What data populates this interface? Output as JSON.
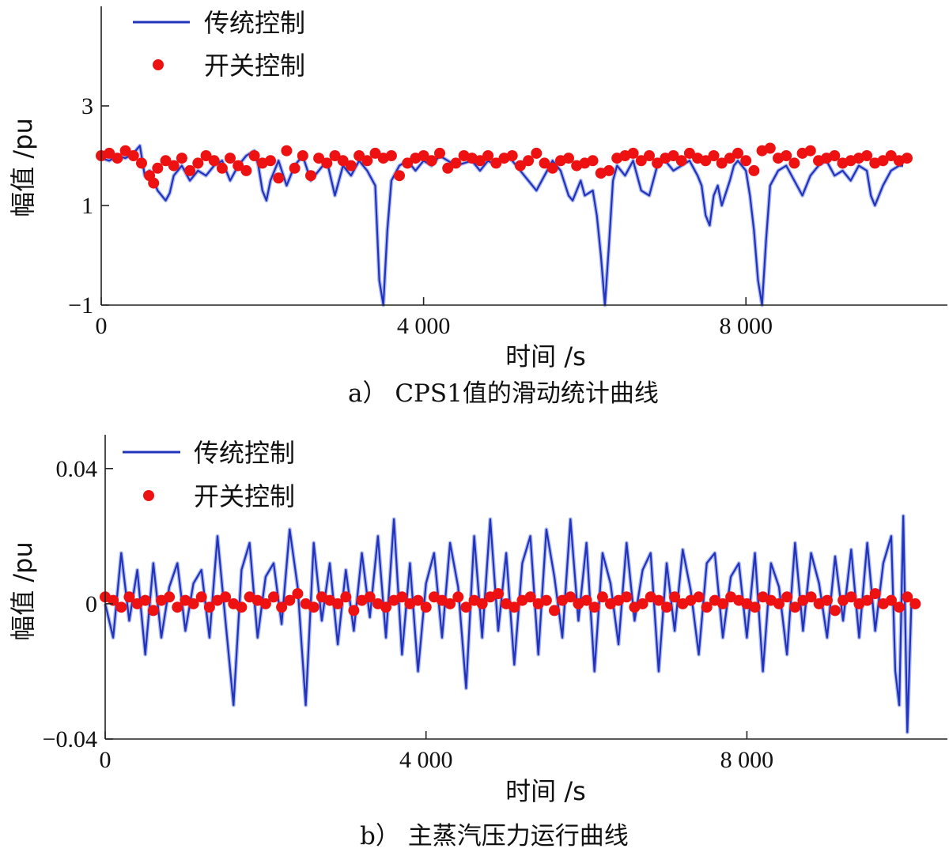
{
  "chart_data": [
    {
      "id": "a",
      "type": "scatter",
      "caption": "a）  CPS1值的滑动统计曲线",
      "xlabel": "时间 /s",
      "ylabel": "幅值 /pu",
      "xlim": [
        0,
        10500
      ],
      "ylim": [
        -1,
        5
      ],
      "x_ticks": [
        0,
        4000,
        8000
      ],
      "x_tick_labels": [
        "0",
        "4 000",
        "8 000"
      ],
      "y_ticks": [
        -1,
        1,
        3
      ],
      "y_tick_labels": [
        "−1",
        "1",
        "3"
      ],
      "grid": false,
      "legend": "top-left",
      "series": [
        {
          "name": "传统控制",
          "kind": "line",
          "color": "#2233bb",
          "x": [
            0,
            100,
            200,
            300,
            400,
            480,
            540,
            600,
            700,
            800,
            850,
            900,
            1000,
            1100,
            1200,
            1300,
            1400,
            1500,
            1600,
            1700,
            1800,
            1900,
            1950,
            2000,
            2050,
            2100,
            2200,
            2300,
            2400,
            2500,
            2600,
            2700,
            2800,
            2900,
            3000,
            3100,
            3200,
            3300,
            3400,
            3450,
            3500,
            3550,
            3600,
            3700,
            3800,
            3900,
            4000,
            4100,
            4200,
            4300,
            4400,
            4500,
            4600,
            4700,
            4800,
            4900,
            5000,
            5100,
            5200,
            5300,
            5400,
            5500,
            5600,
            5700,
            5800,
            5850,
            5950,
            6000,
            6100,
            6150,
            6200,
            6250,
            6300,
            6350,
            6400,
            6500,
            6600,
            6700,
            6800,
            6900,
            7000,
            7100,
            7200,
            7300,
            7400,
            7450,
            7500,
            7550,
            7600,
            7650,
            7700,
            7800,
            7850,
            7900,
            8000,
            8050,
            8100,
            8150,
            8200,
            8250,
            8300,
            8400,
            8500,
            8600,
            8700,
            8800,
            8900,
            9000,
            9100,
            9200,
            9300,
            9400,
            9500,
            9550,
            9600,
            9700,
            9800,
            9900,
            9950
          ],
          "y": [
            1.95,
            1.9,
            2.0,
            1.95,
            2.05,
            2.2,
            1.6,
            1.7,
            1.3,
            1.1,
            1.25,
            1.6,
            1.8,
            1.5,
            1.7,
            1.6,
            1.8,
            1.9,
            1.5,
            1.8,
            2.0,
            2.1,
            1.8,
            1.3,
            1.1,
            1.5,
            1.9,
            1.4,
            1.8,
            2.0,
            1.5,
            1.7,
            1.9,
            1.2,
            1.8,
            1.6,
            1.9,
            1.7,
            1.4,
            -0.5,
            -1.0,
            0.5,
            1.5,
            1.8,
            1.9,
            1.7,
            1.9,
            1.8,
            2.0,
            1.9,
            1.8,
            1.85,
            1.9,
            1.7,
            1.9,
            1.8,
            2.0,
            1.9,
            1.7,
            1.5,
            1.3,
            1.6,
            1.9,
            1.7,
            1.2,
            1.1,
            1.5,
            1.2,
            1.3,
            0.8,
            0.0,
            -1.0,
            0.2,
            1.5,
            1.8,
            1.6,
            1.9,
            1.3,
            1.2,
            1.8,
            1.9,
            1.7,
            1.8,
            1.9,
            1.6,
            1.4,
            0.8,
            0.6,
            1.2,
            1.4,
            1.0,
            1.5,
            1.8,
            1.9,
            1.7,
            1.2,
            0.5,
            -0.5,
            -1.0,
            0.3,
            1.4,
            1.7,
            1.8,
            1.5,
            1.2,
            1.6,
            1.8,
            1.9,
            1.6,
            1.7,
            1.5,
            1.8,
            1.7,
            1.2,
            1.0,
            1.4,
            1.7,
            1.8,
            1.8
          ]
        },
        {
          "name": "开关控制",
          "kind": "markers",
          "color": "#ee1111",
          "x": [
            0,
            100,
            200,
            300,
            400,
            500,
            600,
            650,
            700,
            800,
            900,
            1000,
            1100,
            1200,
            1300,
            1400,
            1500,
            1600,
            1700,
            1800,
            1900,
            2000,
            2100,
            2200,
            2300,
            2400,
            2500,
            2600,
            2700,
            2800,
            2900,
            3000,
            3100,
            3200,
            3300,
            3400,
            3500,
            3600,
            3700,
            3800,
            3900,
            4000,
            4100,
            4200,
            4300,
            4400,
            4500,
            4600,
            4700,
            4800,
            4900,
            5000,
            5100,
            5200,
            5300,
            5400,
            5500,
            5600,
            5700,
            5800,
            5900,
            6000,
            6100,
            6200,
            6300,
            6400,
            6500,
            6600,
            6700,
            6800,
            6900,
            7000,
            7100,
            7200,
            7300,
            7400,
            7500,
            7600,
            7700,
            7800,
            7900,
            8000,
            8100,
            8200,
            8300,
            8400,
            8500,
            8600,
            8700,
            8800,
            8900,
            9000,
            9100,
            9200,
            9300,
            9400,
            9500,
            9600,
            9700,
            9800,
            9900,
            10000
          ],
          "y": [
            2.0,
            2.05,
            1.95,
            2.1,
            2.0,
            1.85,
            1.6,
            1.45,
            1.75,
            1.9,
            1.8,
            1.95,
            1.7,
            1.85,
            2.0,
            1.9,
            1.75,
            1.95,
            1.8,
            1.7,
            2.0,
            1.85,
            1.9,
            1.55,
            2.1,
            1.75,
            2.0,
            1.6,
            1.95,
            1.85,
            2.0,
            1.9,
            1.8,
            2.0,
            1.9,
            2.05,
            1.95,
            2.0,
            1.6,
            1.85,
            1.95,
            2.0,
            1.9,
            2.05,
            1.75,
            1.85,
            2.0,
            1.95,
            1.9,
            2.0,
            1.85,
            1.95,
            2.0,
            1.8,
            1.9,
            2.05,
            1.85,
            1.75,
            1.9,
            1.95,
            1.8,
            1.85,
            1.9,
            1.65,
            1.7,
            1.95,
            2.0,
            2.05,
            1.9,
            2.0,
            1.85,
            1.95,
            2.0,
            1.9,
            2.05,
            1.95,
            1.9,
            2.0,
            1.85,
            1.95,
            2.05,
            1.9,
            1.7,
            2.1,
            2.15,
            1.95,
            2.0,
            1.85,
            2.05,
            2.1,
            1.9,
            1.95,
            2.0,
            1.85,
            1.9,
            1.95,
            2.0,
            1.85,
            1.9,
            2.0,
            1.9,
            1.95
          ]
        }
      ]
    },
    {
      "id": "b",
      "type": "scatter",
      "caption": "b）  主蒸汽压力运行曲线",
      "xlabel": "时间 /s",
      "ylabel": "幅值 /pu",
      "xlim": [
        0,
        10500
      ],
      "ylim": [
        -0.04,
        0.05
      ],
      "x_ticks": [
        0,
        4000,
        8000
      ],
      "x_tick_labels": [
        "0",
        "4 000",
        "8 000"
      ],
      "y_ticks": [
        -0.04,
        0,
        0.04
      ],
      "y_tick_labels": [
        "−0.04",
        "0",
        "0.04"
      ],
      "grid": false,
      "legend": "top-left",
      "series": [
        {
          "name": "传统控制",
          "kind": "line",
          "color": "#2233bb",
          "x": [
            0,
            100,
            200,
            300,
            400,
            500,
            600,
            700,
            800,
            900,
            1000,
            1100,
            1200,
            1300,
            1400,
            1500,
            1600,
            1700,
            1800,
            1900,
            2000,
            2100,
            2200,
            2300,
            2400,
            2500,
            2600,
            2700,
            2800,
            2900,
            3000,
            3100,
            3200,
            3300,
            3400,
            3500,
            3600,
            3700,
            3800,
            3900,
            4000,
            4100,
            4200,
            4300,
            4400,
            4500,
            4600,
            4700,
            4800,
            4900,
            5000,
            5100,
            5200,
            5300,
            5400,
            5500,
            5600,
            5700,
            5800,
            5900,
            6000,
            6100,
            6200,
            6300,
            6400,
            6500,
            6600,
            6700,
            6800,
            6900,
            7000,
            7100,
            7200,
            7300,
            7400,
            7500,
            7600,
            7700,
            7800,
            7900,
            8000,
            8100,
            8200,
            8300,
            8400,
            8500,
            8600,
            8700,
            8800,
            8900,
            9000,
            9100,
            9200,
            9300,
            9400,
            9500,
            9600,
            9700,
            9800,
            9850,
            9900,
            9950,
            10000,
            10050
          ],
          "y": [
            0.0,
            -0.01,
            0.015,
            -0.005,
            0.01,
            -0.015,
            0.012,
            -0.01,
            0.005,
            0.012,
            -0.008,
            0.006,
            0.01,
            -0.01,
            0.02,
            -0.005,
            -0.03,
            0.01,
            0.018,
            -0.01,
            0.008,
            0.012,
            -0.006,
            0.022,
            0.005,
            -0.03,
            0.018,
            -0.005,
            0.012,
            -0.012,
            0.01,
            -0.008,
            0.015,
            -0.004,
            0.02,
            -0.01,
            0.025,
            -0.015,
            0.012,
            -0.02,
            0.006,
            0.015,
            -0.01,
            0.018,
            0.005,
            -0.025,
            0.02,
            -0.01,
            0.025,
            -0.008,
            0.015,
            -0.018,
            0.012,
            0.02,
            -0.015,
            0.022,
            0.008,
            -0.01,
            0.025,
            -0.005,
            0.018,
            -0.02,
            0.015,
            0.006,
            -0.012,
            0.018,
            -0.005,
            0.01,
            0.015,
            -0.02,
            0.012,
            -0.008,
            0.016,
            0.004,
            -0.015,
            0.012,
            0.015,
            -0.01,
            0.008,
            0.012,
            -0.01,
            0.015,
            -0.02,
            0.012,
            0.005,
            -0.015,
            0.018,
            -0.008,
            0.015,
            0.006,
            -0.01,
            0.014,
            -0.005,
            0.016,
            -0.01,
            0.018,
            -0.008,
            0.012,
            0.02,
            -0.02,
            -0.03,
            0.026,
            -0.038,
            0.0
          ]
        },
        {
          "name": "开关控制",
          "kind": "markers",
          "color": "#ee1111",
          "x": [
            0,
            100,
            200,
            300,
            400,
            500,
            600,
            700,
            800,
            900,
            1000,
            1100,
            1200,
            1300,
            1400,
            1500,
            1600,
            1700,
            1800,
            1900,
            2000,
            2100,
            2200,
            2300,
            2400,
            2500,
            2600,
            2700,
            2800,
            2900,
            3000,
            3100,
            3200,
            3300,
            3400,
            3500,
            3600,
            3700,
            3800,
            3900,
            4000,
            4100,
            4200,
            4300,
            4400,
            4500,
            4600,
            4700,
            4800,
            4900,
            5000,
            5100,
            5200,
            5300,
            5400,
            5500,
            5600,
            5700,
            5800,
            5900,
            6000,
            6100,
            6200,
            6300,
            6400,
            6500,
            6600,
            6700,
            6800,
            6900,
            7000,
            7100,
            7200,
            7300,
            7400,
            7500,
            7600,
            7700,
            7800,
            7900,
            8000,
            8100,
            8200,
            8300,
            8400,
            8500,
            8600,
            8700,
            8800,
            8900,
            9000,
            9100,
            9200,
            9300,
            9400,
            9500,
            9600,
            9700,
            9800,
            9900,
            10000,
            10100
          ],
          "y": [
            0.002,
            0.001,
            -0.001,
            0.002,
            0.0,
            0.001,
            -0.002,
            0.001,
            0.002,
            -0.001,
            0.001,
            0.0,
            0.002,
            -0.001,
            0.001,
            0.002,
            0.0,
            -0.001,
            0.002,
            0.001,
            0.0,
            0.002,
            -0.001,
            0.001,
            0.003,
            0.0,
            -0.001,
            0.002,
            0.001,
            0.0,
            0.002,
            -0.002,
            0.001,
            0.002,
            0.0,
            -0.001,
            0.001,
            0.002,
            0.0,
            0.001,
            -0.001,
            0.002,
            0.001,
            0.0,
            0.002,
            -0.001,
            0.001,
            0.0,
            0.002,
            0.003,
            0.0,
            -0.001,
            0.001,
            0.002,
            0.0,
            0.001,
            -0.002,
            0.001,
            0.002,
            0.0,
            0.001,
            -0.001,
            0.002,
            0.0,
            0.001,
            0.002,
            -0.001,
            0.0,
            0.002,
            0.001,
            -0.001,
            0.002,
            0.0,
            0.001,
            0.002,
            -0.001,
            0.001,
            0.0,
            0.002,
            0.001,
            0.0,
            -0.001,
            0.002,
            0.001,
            0.0,
            0.002,
            -0.001,
            0.001,
            0.002,
            0.0,
            0.001,
            -0.002,
            0.001,
            0.002,
            0.0,
            0.001,
            0.003,
            0.0,
            0.001,
            -0.001,
            0.002,
            0.0
          ]
        }
      ]
    }
  ]
}
